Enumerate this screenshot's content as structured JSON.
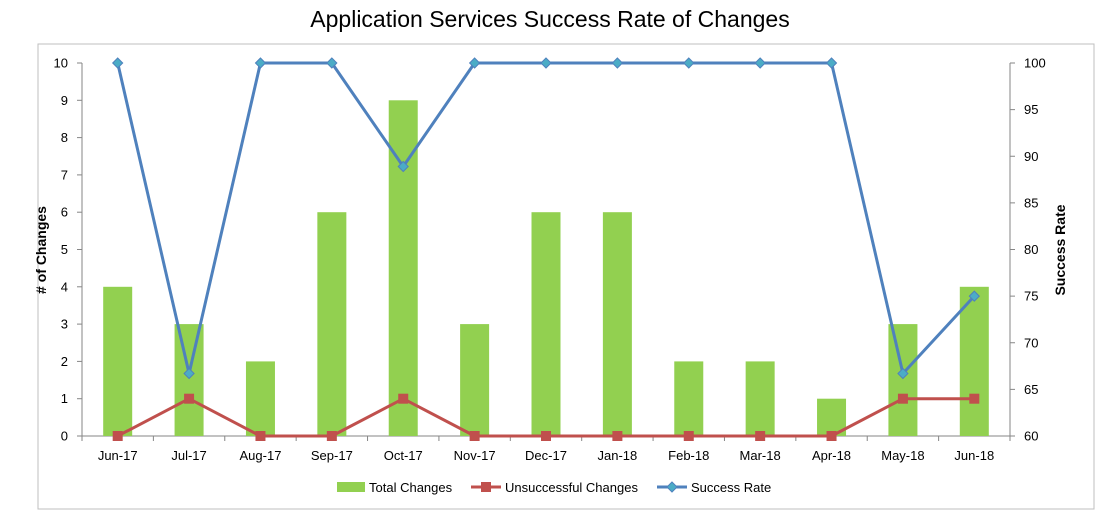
{
  "chart_data": {
    "type": "bar",
    "title": "Application Services Success Rate of Changes",
    "categories": [
      "Jun-17",
      "Jul-17",
      "Aug-17",
      "Sep-17",
      "Oct-17",
      "Nov-17",
      "Dec-17",
      "Jan-18",
      "Feb-18",
      "Mar-18",
      "Apr-18",
      "May-18",
      "Jun-18"
    ],
    "ylabel": "# of Changes",
    "y2label": "Success Rate",
    "ylim": [
      0,
      10
    ],
    "y2lim": [
      60,
      100
    ],
    "yticks": [
      0,
      1,
      2,
      3,
      4,
      5,
      6,
      7,
      8,
      9,
      10
    ],
    "y2ticks": [
      60,
      65,
      70,
      75,
      80,
      85,
      90,
      95,
      100
    ],
    "grid": false,
    "legend_position": "bottom",
    "series": [
      {
        "name": "Total Changes",
        "type": "bar",
        "axis": "left",
        "color": "#92d050",
        "values": [
          4,
          3,
          2,
          6,
          9,
          3,
          6,
          6,
          2,
          2,
          1,
          3,
          4
        ]
      },
      {
        "name": "Unsuccessful Changes",
        "type": "line",
        "axis": "left",
        "color": "#c0504d",
        "marker": "square",
        "values": [
          0,
          1,
          0,
          0,
          1,
          0,
          0,
          0,
          0,
          0,
          0,
          1,
          1
        ]
      },
      {
        "name": "Success Rate",
        "type": "line",
        "axis": "right",
        "color": "#4f81bd",
        "marker": "diamond",
        "values": [
          100,
          66.7,
          100,
          100,
          88.9,
          100,
          100,
          100,
          100,
          100,
          100,
          66.7,
          75
        ]
      }
    ]
  }
}
